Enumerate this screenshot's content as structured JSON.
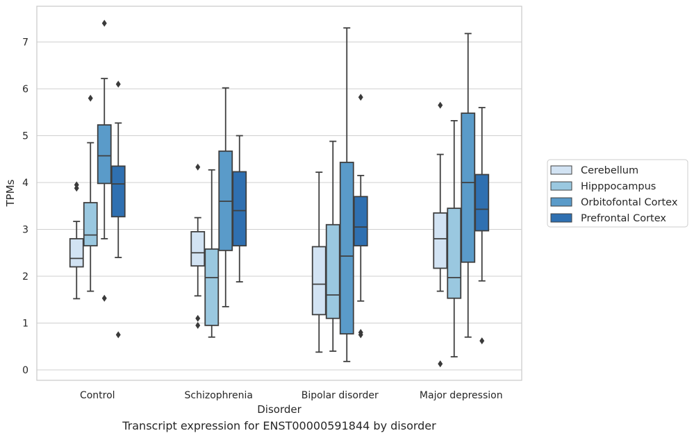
{
  "caption": "Transcript expression for ENST00000591844 by disorder",
  "chart_data": {
    "type": "box",
    "title": "",
    "xlabel": "Disorder",
    "ylabel": "TPMs",
    "ylim": [
      -0.2,
      7.75
    ],
    "yticks": [
      0,
      1,
      2,
      3,
      4,
      5,
      6,
      7
    ],
    "grid": "horizontal",
    "legend_position": "right",
    "categories": [
      "Control",
      "Schizophrenia",
      "Bipolar disorder",
      "Major depression"
    ],
    "series": [
      {
        "name": "Cerebellum",
        "color": "#d2e3f3",
        "boxes": [
          {
            "q1": 2.2,
            "median": 2.38,
            "q3": 2.8,
            "whisker_low": 1.52,
            "whisker_high": 3.17,
            "outliers": [
              3.88,
              3.95
            ]
          },
          {
            "q1": 2.22,
            "median": 2.5,
            "q3": 2.95,
            "whisker_low": 1.58,
            "whisker_high": 3.25,
            "outliers": [
              4.33,
              1.1,
              0.95
            ]
          },
          {
            "q1": 1.18,
            "median": 1.83,
            "q3": 2.63,
            "whisker_low": 0.38,
            "whisker_high": 4.22,
            "outliers": []
          },
          {
            "q1": 2.17,
            "median": 2.8,
            "q3": 3.35,
            "whisker_low": 1.68,
            "whisker_high": 4.6,
            "outliers": [
              5.65,
              0.13
            ]
          }
        ]
      },
      {
        "name": "Hipppocampus",
        "color": "#9ac8e0",
        "boxes": [
          {
            "q1": 2.65,
            "median": 2.88,
            "q3": 3.57,
            "whisker_low": 1.68,
            "whisker_high": 4.85,
            "outliers": [
              5.8
            ]
          },
          {
            "q1": 0.95,
            "median": 1.97,
            "q3": 2.58,
            "whisker_low": 0.7,
            "whisker_high": 4.27,
            "outliers": []
          },
          {
            "q1": 1.1,
            "median": 1.6,
            "q3": 3.1,
            "whisker_low": 0.4,
            "whisker_high": 4.88,
            "outliers": []
          },
          {
            "q1": 1.53,
            "median": 1.97,
            "q3": 3.45,
            "whisker_low": 0.28,
            "whisker_high": 5.32,
            "outliers": []
          }
        ]
      },
      {
        "name": "Orbitofontal Cortex",
        "color": "#5a9bc9",
        "boxes": [
          {
            "q1": 3.98,
            "median": 4.57,
            "q3": 5.23,
            "whisker_low": 2.8,
            "whisker_high": 6.22,
            "outliers": [
              7.4,
              1.53
            ]
          },
          {
            "q1": 2.55,
            "median": 3.6,
            "q3": 4.67,
            "whisker_low": 1.35,
            "whisker_high": 6.02,
            "outliers": []
          },
          {
            "q1": 0.77,
            "median": 2.43,
            "q3": 4.43,
            "whisker_low": 0.18,
            "whisker_high": 7.3,
            "outliers": []
          },
          {
            "q1": 2.3,
            "median": 4.0,
            "q3": 5.48,
            "whisker_low": 0.7,
            "whisker_high": 7.18,
            "outliers": []
          }
        ]
      },
      {
        "name": "Prefrontal Cortex",
        "color": "#2f70b1",
        "boxes": [
          {
            "q1": 3.27,
            "median": 3.97,
            "q3": 4.35,
            "whisker_low": 2.4,
            "whisker_high": 5.27,
            "outliers": [
              6.1,
              0.75
            ]
          },
          {
            "q1": 2.65,
            "median": 3.4,
            "q3": 4.23,
            "whisker_low": 1.88,
            "whisker_high": 5.0,
            "outliers": []
          },
          {
            "q1": 2.65,
            "median": 3.05,
            "q3": 3.7,
            "whisker_low": 1.47,
            "whisker_high": 4.15,
            "outliers": [
              5.82,
              0.8,
              0.75
            ]
          },
          {
            "q1": 2.97,
            "median": 3.43,
            "q3": 4.17,
            "whisker_low": 1.9,
            "whisker_high": 5.6,
            "outliers": [
              0.62
            ]
          }
        ]
      }
    ]
  }
}
